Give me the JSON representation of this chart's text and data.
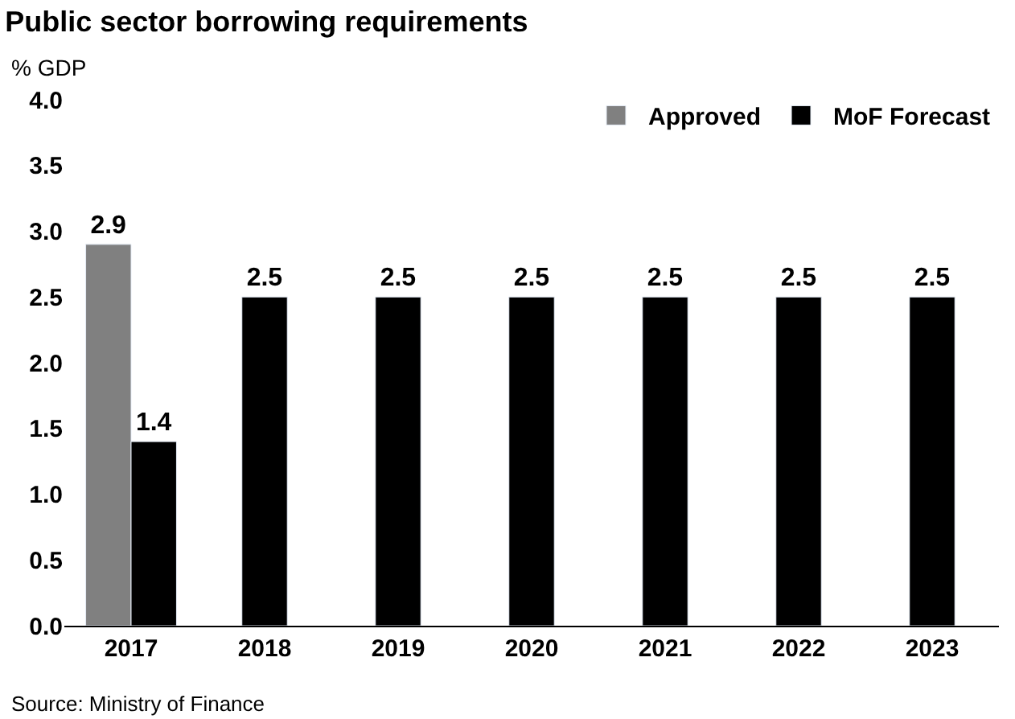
{
  "chart_data": {
    "type": "bar",
    "title": "Public sector borrowing requirements",
    "ylabel": "% GDP",
    "categories": [
      "2017",
      "2018",
      "2019",
      "2020",
      "2021",
      "2022",
      "2023"
    ],
    "series": [
      {
        "name": "Approved",
        "color": "#808080",
        "values": [
          2.9,
          null,
          null,
          null,
          null,
          null,
          null
        ]
      },
      {
        "name": "MoF Forecast",
        "color": "#000000",
        "values": [
          1.4,
          2.5,
          2.5,
          2.5,
          2.5,
          2.5,
          2.5
        ]
      }
    ],
    "ylim": [
      0,
      4
    ],
    "yticks": [
      {
        "value": 0,
        "label": "0.0"
      },
      {
        "value": 0.5,
        "label": "0.5"
      },
      {
        "value": 1,
        "label": "1.0"
      },
      {
        "value": 1.5,
        "label": "1.5"
      },
      {
        "value": 2,
        "label": "2.0"
      },
      {
        "value": 2.5,
        "label": "2.5"
      },
      {
        "value": 3,
        "label": "3.0"
      },
      {
        "value": 3.5,
        "label": "3.5"
      },
      {
        "value": 4,
        "label": "4.0"
      }
    ],
    "data_labels": true,
    "legend": "top right",
    "annotations": [
      "Source: Ministry of Finance"
    ]
  }
}
